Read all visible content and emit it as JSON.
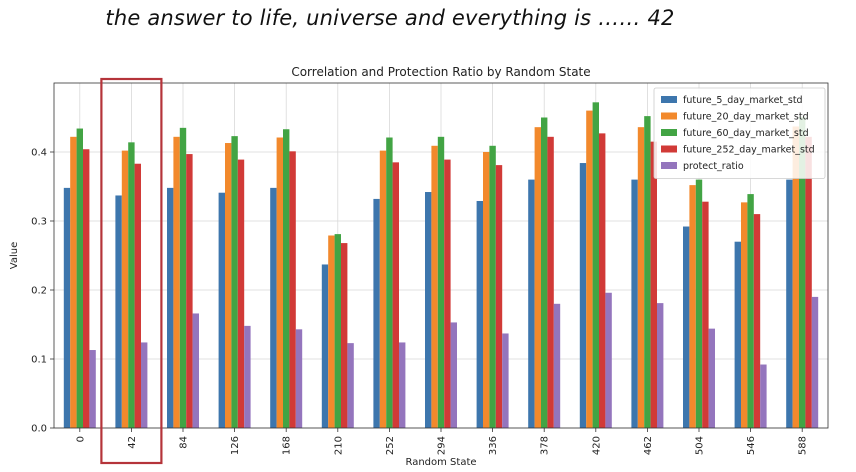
{
  "caption": "the answer to life, universe and everything is …… 42",
  "highlight": {
    "category": "42",
    "color": "#b5343a"
  },
  "chart_data": {
    "type": "bar",
    "title": "Correlation and Protection Ratio by Random State",
    "xlabel": "Random State",
    "ylabel": "Value",
    "ylim": [
      0,
      0.5
    ],
    "yticks": [
      0.0,
      0.1,
      0.2,
      0.3,
      0.4
    ],
    "grid": true,
    "legend_position": "top-right",
    "categories": [
      "0",
      "42",
      "84",
      "126",
      "168",
      "210",
      "252",
      "294",
      "336",
      "378",
      "420",
      "462",
      "504",
      "546",
      "588"
    ],
    "series": [
      {
        "name": "future_5_day_market_std",
        "color": "#3d76ad",
        "values": [
          0.348,
          0.337,
          0.348,
          0.341,
          0.348,
          0.237,
          0.332,
          0.342,
          0.329,
          0.36,
          0.384,
          0.36,
          0.292,
          0.27,
          0.36
        ]
      },
      {
        "name": "future_20_day_market_std",
        "color": "#f2892c",
        "values": [
          0.422,
          0.402,
          0.422,
          0.413,
          0.421,
          0.279,
          0.402,
          0.409,
          0.4,
          0.436,
          0.46,
          0.436,
          0.352,
          0.327,
          0.437
        ]
      },
      {
        "name": "future_60_day_market_std",
        "color": "#42a444",
        "values": [
          0.434,
          0.414,
          0.435,
          0.423,
          0.433,
          0.281,
          0.421,
          0.422,
          0.409,
          0.45,
          0.472,
          0.452,
          0.36,
          0.339,
          0.451
        ]
      },
      {
        "name": "future_252_day_market_std",
        "color": "#d13a37",
        "values": [
          0.404,
          0.383,
          0.397,
          0.389,
          0.401,
          0.268,
          0.385,
          0.389,
          0.381,
          0.422,
          0.427,
          0.415,
          0.328,
          0.31,
          0.422
        ]
      },
      {
        "name": "protect_ratio",
        "color": "#9475bd",
        "values": [
          0.113,
          0.124,
          0.166,
          0.148,
          0.143,
          0.123,
          0.124,
          0.153,
          0.137,
          0.18,
          0.196,
          0.181,
          0.144,
          0.092,
          0.19
        ]
      }
    ]
  }
}
